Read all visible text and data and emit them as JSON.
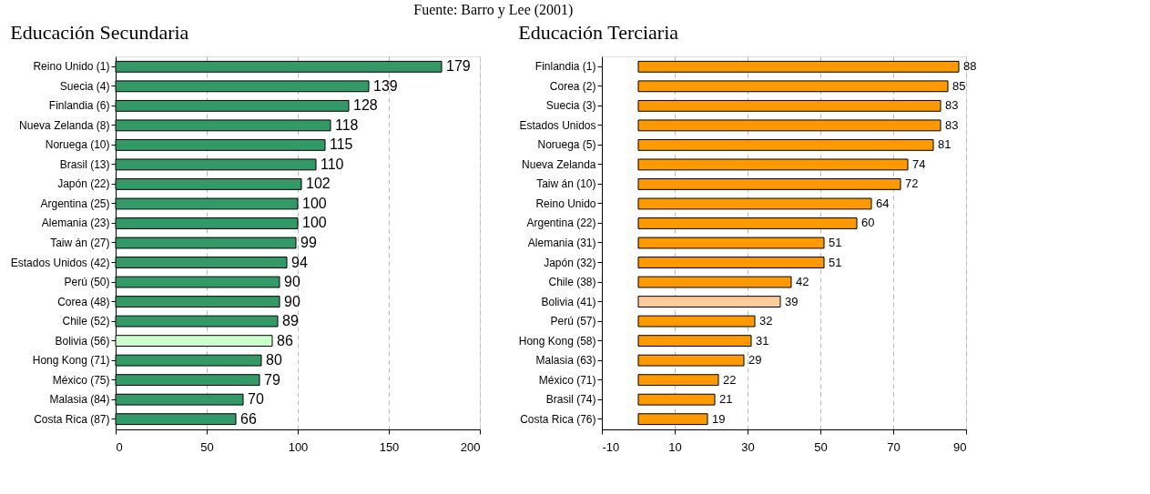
{
  "chart_data": [
    {
      "type": "bar",
      "orientation": "horizontal",
      "title": "Educación Secundaria",
      "annotations": [
        "Fuente: Barro y Lee (2001)"
      ],
      "categories": [
        "Reino Unido (1)",
        "Suecia (4)",
        "Finlandia (6)",
        "Nueva Zelanda (8)",
        "Noruega (10)",
        "Brasil (13)",
        "Japón (22)",
        "Argentina (25)",
        "Alemania (23)",
        "Taiw án (27)",
        "Estados Unidos (42)",
        "Perú (50)",
        "Corea (48)",
        "Chile (52)",
        "Bolivia (56)",
        "Hong Kong (71)",
        "México (75)",
        "Malasia (84)",
        "Costa Rica (87)"
      ],
      "values": [
        179,
        139,
        128,
        118,
        115,
        110,
        102,
        100,
        100,
        99,
        94,
        90,
        90,
        89,
        86,
        80,
        79,
        70,
        66
      ],
      "colors": [
        "#339966",
        "#339966",
        "#339966",
        "#339966",
        "#339966",
        "#339966",
        "#339966",
        "#339966",
        "#339966",
        "#339966",
        "#339966",
        "#339966",
        "#339966",
        "#339966",
        "#ccffcc",
        "#339966",
        "#339966",
        "#339966",
        "#339966"
      ],
      "xlim": [
        0,
        200
      ],
      "xticks": [
        0,
        50,
        100,
        150,
        200
      ],
      "grid": "x",
      "data_labels": true,
      "legend": false
    },
    {
      "type": "bar",
      "orientation": "horizontal",
      "title": "Educación Terciaria",
      "categories": [
        "Finlandia (1)",
        "Corea (2)",
        "Suecia (3)",
        "Estados Unidos",
        "Noruega (5)",
        "Nueva Zelanda",
        "Taiw án (10)",
        "Reino Unido",
        "Argentina (22)",
        "Alemania (31)",
        "Japón (32)",
        "Chile (38)",
        "Bolivia (41)",
        "Perú (57)",
        "Hong Kong (58)",
        "Malasia (63)",
        "México (71)",
        "Brasil (74)",
        "Costa Rica (76)"
      ],
      "values": [
        88,
        85,
        83,
        83,
        81,
        74,
        72,
        64,
        60,
        51,
        51,
        42,
        39,
        32,
        31,
        29,
        22,
        21,
        19
      ],
      "colors": [
        "#ff9900",
        "#ff9900",
        "#ff9900",
        "#ff9900",
        "#ff9900",
        "#ff9900",
        "#ff9900",
        "#ff9900",
        "#ff9900",
        "#ff9900",
        "#ff9900",
        "#ff9900",
        "#ffcc99",
        "#ff9900",
        "#ff9900",
        "#ff9900",
        "#ff9900",
        "#ff9900",
        "#ff9900"
      ],
      "xlim": [
        -10,
        90
      ],
      "xticks": [
        -10,
        10,
        30,
        50,
        70,
        90
      ],
      "grid": "x",
      "data_labels": true,
      "legend": false
    }
  ]
}
